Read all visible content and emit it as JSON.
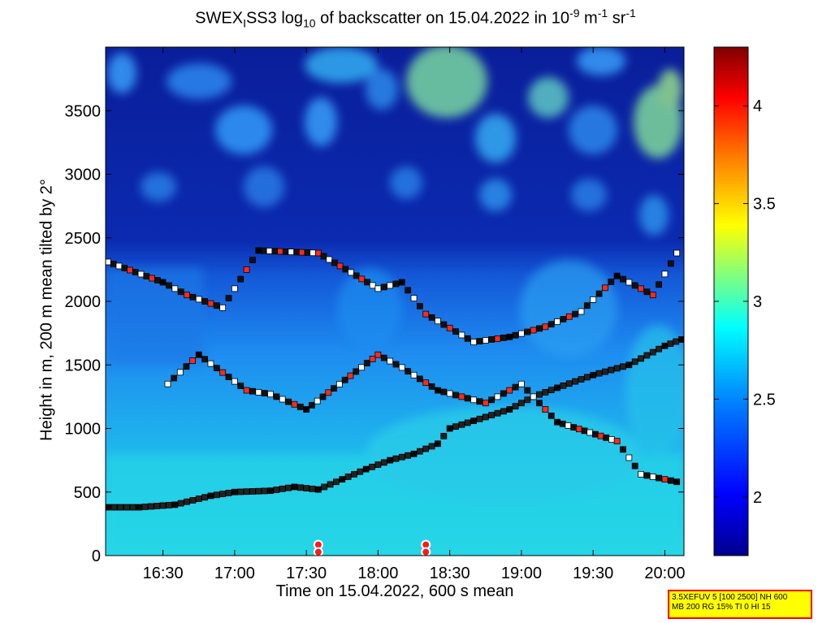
{
  "title": {
    "prefix": "SWEX",
    "sub_i": "I",
    "mid": "SS3 log",
    "sub_10": "10",
    "rest": " of backscatter on 15.04.2022 in 10",
    "sup_9": "-9",
    "unit_m": " m",
    "sup_m": "-1",
    "unit_sr": " sr",
    "sup_sr": "-1"
  },
  "info_box": {
    "line1": "3.5XEFUV 5 [100 2500] NH 600",
    "line2": "MB 200 RG 15% TI 0 HI 15"
  },
  "colors": {
    "background_low": "#0a1e9a",
    "layer_mid": "#1e90ff",
    "layer_near": "#23d6e6",
    "colorbar_stops": [
      "#00008f",
      "#0000ff",
      "#0080ff",
      "#00ffff",
      "#80ff80",
      "#ffff00",
      "#ff8000",
      "#ff0000",
      "#800000"
    ]
  },
  "chart_data": {
    "type": "heatmap",
    "title": "SWEX_I SS3 log10 of backscatter on 15.04.2022 in 10^-9 m^-1 sr^-1",
    "xlabel": "Time on 15.04.2022, 600 s mean",
    "ylabel": "Height in m, 200 m mean tilted by 2°",
    "xlim": [
      "16:06",
      "20:08"
    ],
    "ylim": [
      0,
      4000
    ],
    "x_ticks": [
      "16:30",
      "17:00",
      "17:30",
      "18:00",
      "18:30",
      "19:00",
      "19:30",
      "20:00"
    ],
    "y_ticks": [
      "0",
      "500",
      "1000",
      "1500",
      "2000",
      "2500",
      "3000",
      "3500"
    ],
    "colorbar": {
      "range": [
        1.7,
        4.3
      ],
      "ticks": [
        "2",
        "2.5",
        "3",
        "3.5",
        "4"
      ]
    },
    "series": [
      {
        "points": [
          {
            "t": "16:07",
            "h": 380
          },
          {
            "t": "16:20",
            "h": 380
          },
          {
            "t": "16:35",
            "h": 400
          },
          {
            "t": "16:50",
            "h": 470
          },
          {
            "t": "17:00",
            "h": 500
          },
          {
            "t": "17:15",
            "h": 510
          },
          {
            "t": "17:25",
            "h": 540
          },
          {
            "t": "17:35",
            "h": 520
          },
          {
            "t": "17:45",
            "h": 600
          },
          {
            "t": "17:55",
            "h": 680
          },
          {
            "t": "18:05",
            "h": 750
          },
          {
            "t": "18:15",
            "h": 800
          },
          {
            "t": "18:25",
            "h": 880
          },
          {
            "t": "18:30",
            "h": 1000
          },
          {
            "t": "18:40",
            "h": 1060
          },
          {
            "t": "18:55",
            "h": 1150
          },
          {
            "t": "19:05",
            "h": 1250
          },
          {
            "t": "19:15",
            "h": 1320
          },
          {
            "t": "19:30",
            "h": 1420
          },
          {
            "t": "19:45",
            "h": 1500
          },
          {
            "t": "20:00",
            "h": 1650
          },
          {
            "t": "20:07",
            "h": 1700
          }
        ]
      },
      {
        "points": [
          {
            "t": "16:07",
            "h": 2310
          },
          {
            "t": "16:30",
            "h": 2150
          },
          {
            "t": "16:40",
            "h": 2050
          },
          {
            "t": "16:55",
            "h": 1950
          },
          {
            "t": "17:10",
            "h": 2400
          },
          {
            "t": "17:35",
            "h": 2380
          },
          {
            "t": "18:00",
            "h": 2100
          },
          {
            "t": "18:10",
            "h": 2150
          },
          {
            "t": "18:20",
            "h": 1900
          },
          {
            "t": "18:40",
            "h": 1680
          },
          {
            "t": "18:55",
            "h": 1720
          },
          {
            "t": "19:10",
            "h": 1800
          },
          {
            "t": "19:25",
            "h": 1920
          },
          {
            "t": "19:40",
            "h": 2200
          },
          {
            "t": "19:55",
            "h": 2050
          },
          {
            "t": "20:05",
            "h": 2380
          }
        ]
      },
      {
        "points": [
          {
            "t": "16:32",
            "h": 1350
          },
          {
            "t": "16:45",
            "h": 1580
          },
          {
            "t": "17:05",
            "h": 1300
          },
          {
            "t": "17:15",
            "h": 1270
          },
          {
            "t": "17:30",
            "h": 1150
          },
          {
            "t": "18:00",
            "h": 1580
          },
          {
            "t": "18:10",
            "h": 1480
          },
          {
            "t": "18:25",
            "h": 1300
          },
          {
            "t": "18:45",
            "h": 1200
          },
          {
            "t": "19:00",
            "h": 1350
          },
          {
            "t": "19:15",
            "h": 1050
          },
          {
            "t": "19:40",
            "h": 900
          },
          {
            "t": "19:50",
            "h": 640
          },
          {
            "t": "20:05",
            "h": 580
          }
        ]
      }
    ],
    "markers": [
      {
        "t": "17:35",
        "h": 60
      },
      {
        "t": "18:20",
        "h": 60
      }
    ]
  }
}
